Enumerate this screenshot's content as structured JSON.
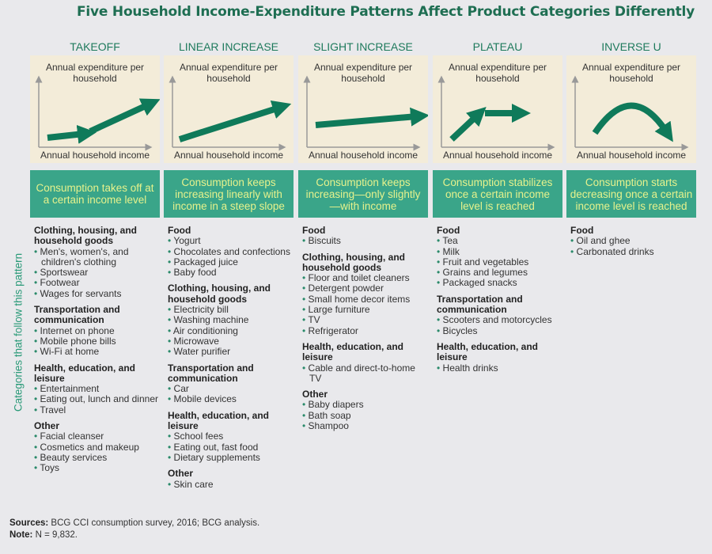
{
  "title": "Five Household Income-Expenditure Patterns Affect Product Categories Differently",
  "side_label": "Categories that follow this pattern",
  "axis": {
    "y": "Annual expenditure per household",
    "x": "Annual household income"
  },
  "colors": {
    "accent": "#0f7a5a",
    "desc_bg": "#3aa589",
    "desc_text": "#e6f28c",
    "chart_bg": "#f3ecd9"
  },
  "columns": [
    {
      "name": "TAKEOFF",
      "pattern": "takeoff",
      "desc": "Consumption takes off at a certain income level",
      "groups": [
        {
          "h": "Clothing, housing, and household goods",
          "items": [
            "Men's, women's, and children's clothing",
            "Sportswear",
            "Footwear",
            "Wages for servants"
          ]
        },
        {
          "h": "Transportation and communication",
          "items": [
            "Internet on phone",
            "Mobile phone bills",
            "Wi-Fi at home"
          ]
        },
        {
          "h": "Health, education, and leisure",
          "items": [
            "Entertainment",
            "Eating out, lunch and dinner",
            "Travel"
          ]
        },
        {
          "h": "Other",
          "items": [
            "Facial cleanser",
            "Cosmetics and makeup",
            "Beauty services",
            "Toys"
          ]
        }
      ]
    },
    {
      "name": "LINEAR INCREASE",
      "pattern": "linear",
      "desc": "Consumption keeps increasing linearly with income in a steep slope",
      "groups": [
        {
          "h": "Food",
          "items": [
            "Yogurt",
            "Chocolates and confections",
            "Packaged juice",
            "Baby food"
          ]
        },
        {
          "h": "Clothing, housing, and household goods",
          "items": [
            "Electricity bill",
            "Washing machine",
            "Air conditioning",
            "Microwave",
            "Water purifier"
          ]
        },
        {
          "h": "Transportation and communication",
          "items": [
            "Car",
            "Mobile devices"
          ]
        },
        {
          "h": "Health, education, and leisure",
          "items": [
            "School fees",
            "Eating out, fast food",
            "Dietary supplements"
          ]
        },
        {
          "h": "Other",
          "items": [
            "Skin care"
          ]
        }
      ]
    },
    {
      "name": "SLIGHT INCREASE",
      "pattern": "slight",
      "desc": "Consumption keeps increasing—only slightly—with income",
      "groups": [
        {
          "h": "Food",
          "items": [
            "Biscuits"
          ]
        },
        {
          "h": "Clothing, housing, and household goods",
          "items": [
            "Floor and toilet cleaners",
            "Detergent powder",
            "Small home decor items",
            "Large furniture",
            "TV",
            "Refrigerator"
          ]
        },
        {
          "h": "Health, education, and leisure",
          "items": [
            "Cable and direct-to-home TV"
          ]
        },
        {
          "h": "Other",
          "items": [
            "Baby diapers",
            "Bath soap",
            "Shampoo"
          ]
        }
      ]
    },
    {
      "name": "PLATEAU",
      "pattern": "plateau",
      "desc": "Consumption stabilizes once a certain income level is reached",
      "groups": [
        {
          "h": "Food",
          "items": [
            "Tea",
            "Milk",
            "Fruit and vegetables",
            "Grains and legumes",
            "Packaged snacks"
          ]
        },
        {
          "h": "Transportation and communication",
          "items": [
            "Scooters and motorcycles",
            "Bicycles"
          ]
        },
        {
          "h": "Health, education, and leisure",
          "items": [
            "Health drinks"
          ]
        }
      ]
    },
    {
      "name": "INVERSE U",
      "pattern": "inverse-u",
      "desc": "Consumption starts decreasing once a certain income level is reached",
      "groups": [
        {
          "h": "Food",
          "items": [
            "Oil and ghee",
            "Carbonated drinks"
          ]
        }
      ]
    }
  ],
  "footer": {
    "sources_label": "Sources:",
    "sources": "BCG CCI consumption survey, 2016; BCG analysis.",
    "note_label": "Note:",
    "note": "N = 9,832."
  }
}
